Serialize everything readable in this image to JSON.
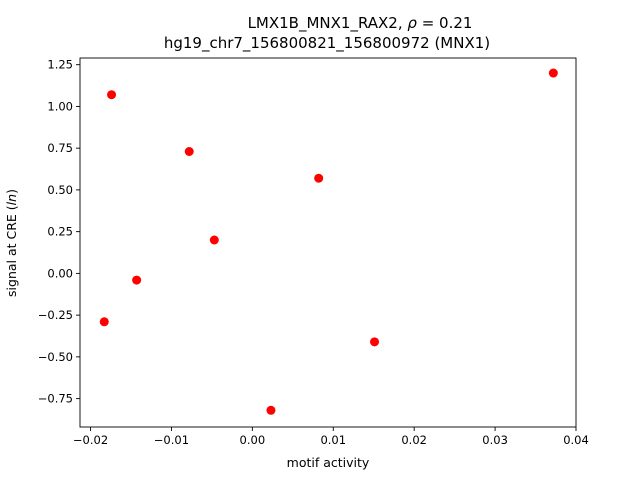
{
  "chart_data": {
    "type": "scatter",
    "title_line1_prefix": "LMX1B_MNX1_RAX2, ",
    "title_line1_rho": "ρ",
    "title_line1_suffix": " = 0.21",
    "title_line2": "hg19_chr7_156800821_156800972 (MNX1)",
    "xlabel": "motif activity",
    "ylabel_prefix": "signal at CRE (",
    "ylabel_italic": "ln",
    "ylabel_suffix": ")",
    "xlim": [
      -0.0213,
      0.04
    ],
    "ylim": [
      -0.92,
      1.29
    ],
    "xticks": [
      -0.02,
      -0.01,
      0.0,
      0.01,
      0.02,
      0.03,
      0.04
    ],
    "xtick_labels": [
      "−0.02",
      "−0.01",
      "0.00",
      "0.01",
      "0.02",
      "0.03",
      "0.04"
    ],
    "yticks": [
      -0.75,
      -0.5,
      -0.25,
      0.0,
      0.25,
      0.5,
      0.75,
      1.0,
      1.25
    ],
    "ytick_labels": [
      "−0.75",
      "−0.50",
      "−0.25",
      "0.00",
      "0.25",
      "0.50",
      "0.75",
      "1.00",
      "1.25"
    ],
    "marker_color": "#ff0000",
    "points": [
      {
        "x": -0.0174,
        "y": 1.07
      },
      {
        "x": -0.0078,
        "y": 0.73
      },
      {
        "x": -0.0047,
        "y": 0.2
      },
      {
        "x": -0.0143,
        "y": -0.04
      },
      {
        "x": -0.0183,
        "y": -0.29
      },
      {
        "x": 0.0082,
        "y": 0.57
      },
      {
        "x": 0.0151,
        "y": -0.41
      },
      {
        "x": 0.0023,
        "y": -0.82
      },
      {
        "x": 0.0372,
        "y": 1.2
      }
    ],
    "grid": false,
    "legend": "none"
  }
}
